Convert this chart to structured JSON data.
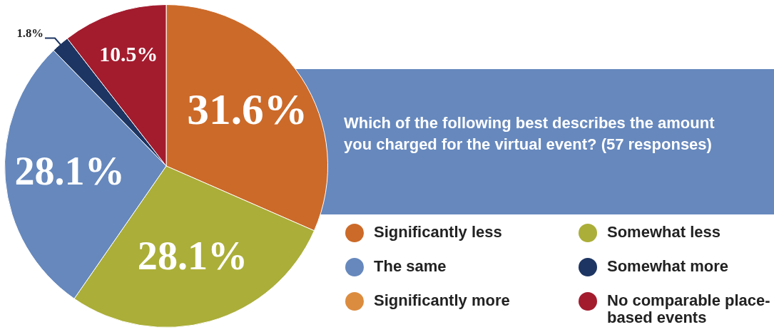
{
  "chart_data": {
    "type": "pie",
    "title": "Which of the following best describes the amount you charged for the virtual event? (57 responses)",
    "categories": [
      "Significantly less",
      "Somewhat less",
      "The same",
      "Somewhat more",
      "Significantly more",
      "No comparable place-based events"
    ],
    "values": [
      31.6,
      28.1,
      28.1,
      1.8,
      0,
      10.5
    ],
    "colors": [
      "#cc6a29",
      "#abae38",
      "#6688bd",
      "#1d3562",
      "#dc8c3f",
      "#a31c2e"
    ],
    "value_labels": [
      "31.6%",
      "28.1%",
      "28.1%",
      "1.8%",
      null,
      "10.5%"
    ],
    "legend": "bottom right"
  }
}
